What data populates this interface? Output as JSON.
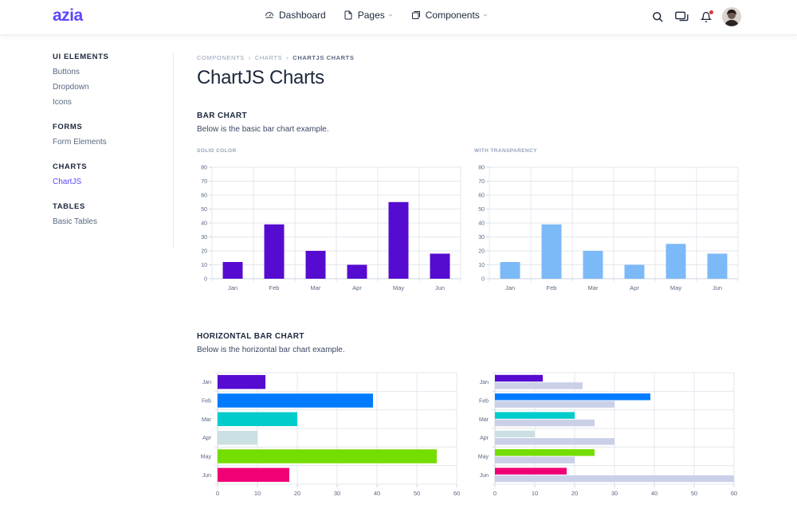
{
  "header": {
    "logo": "azia",
    "nav": [
      {
        "label": "Dashboard",
        "icon": "dashboard-icon",
        "dropdown": false
      },
      {
        "label": "Pages",
        "icon": "file-icon",
        "dropdown": true
      },
      {
        "label": "Components",
        "icon": "box-icon",
        "dropdown": true
      }
    ],
    "icons": [
      "search-icon",
      "chat-icon",
      "bell-icon"
    ],
    "notification_color": "#dc3545"
  },
  "sidebar": {
    "groups": [
      {
        "title": "UI ELEMENTS",
        "links": [
          "Buttons",
          "Dropdown",
          "Icons"
        ]
      },
      {
        "title": "FORMS",
        "links": [
          "Form Elements"
        ]
      },
      {
        "title": "CHARTS",
        "links": [
          "ChartJS"
        ]
      },
      {
        "title": "TABLES",
        "links": [
          "Basic Tables"
        ]
      }
    ],
    "active_link": "ChartJS"
  },
  "breadcrumb": [
    "COMPONENTS",
    "CHARTS",
    "CHARTJS CHARTS"
  ],
  "page_title": "ChartJS Charts",
  "sections": {
    "bar": {
      "title": "BAR CHART",
      "desc": "Below is the basic bar chart example."
    },
    "hbar": {
      "title": "HORIZONTAL BAR CHART",
      "desc": "Below is the horizontal bar chart example."
    }
  },
  "colors": {
    "accent": "#5b47fb",
    "bar_solid": "#560bd0",
    "bar_transparent": "#7cb9f7",
    "second_series": "#cad0e8"
  },
  "chart_data": [
    {
      "type": "bar",
      "label": "SOLID COLOR",
      "categories": [
        "Jan",
        "Feb",
        "Mar",
        "Apr",
        "May",
        "Jun"
      ],
      "values": [
        12,
        39,
        20,
        10,
        55,
        18
      ],
      "ylim": [
        0,
        80
      ],
      "yticks": [
        0,
        10,
        20,
        30,
        40,
        50,
        60,
        70,
        80
      ],
      "color": "#560bd0",
      "grid": true
    },
    {
      "type": "bar",
      "label": "WITH TRANSPARENCY",
      "categories": [
        "Jan",
        "Feb",
        "Mar",
        "Apr",
        "May",
        "Jun"
      ],
      "values": [
        12,
        39,
        20,
        10,
        25,
        18
      ],
      "ylim": [
        0,
        80
      ],
      "yticks": [
        0,
        10,
        20,
        30,
        40,
        50,
        60,
        70,
        80
      ],
      "color": "#7cb9f7",
      "grid": true
    },
    {
      "type": "bar",
      "orientation": "horizontal",
      "categories": [
        "Jan",
        "Feb",
        "Mar",
        "Apr",
        "May",
        "Jun"
      ],
      "values": [
        12,
        39,
        20,
        10,
        55,
        18
      ],
      "colors": [
        "#560bd0",
        "#007bff",
        "#00cccc",
        "#cbe0e3",
        "#74de00",
        "#f10075"
      ],
      "xlim": [
        0,
        60
      ],
      "xticks": [
        0,
        10,
        20,
        30,
        40,
        50,
        60
      ],
      "grid": true
    },
    {
      "type": "bar",
      "orientation": "horizontal",
      "categories": [
        "Jan",
        "Feb",
        "Mar",
        "Apr",
        "May",
        "Jun"
      ],
      "series": [
        {
          "values": [
            12,
            39,
            20,
            10,
            25,
            18
          ],
          "colors": [
            "#560bd0",
            "#007bff",
            "#00cccc",
            "#cbe0e3",
            "#74de00",
            "#f10075"
          ]
        },
        {
          "values": [
            22,
            30,
            25,
            30,
            20,
            60
          ],
          "color": "#cad0e8"
        }
      ],
      "xlim": [
        0,
        60
      ],
      "xticks": [
        0,
        10,
        20,
        30,
        40,
        50,
        60
      ],
      "grid": true
    }
  ]
}
